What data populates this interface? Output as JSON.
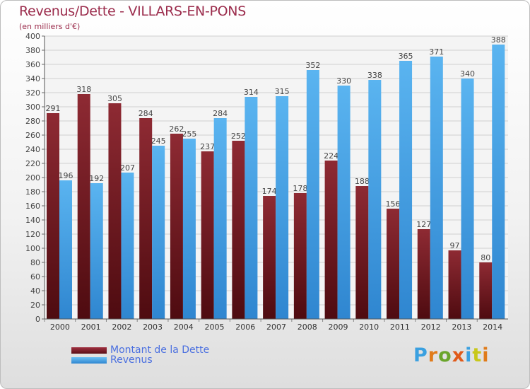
{
  "chart_data": {
    "type": "bar",
    "title": "Revenus/Dette - VILLARS-EN-PONS",
    "subtitle": "(en milliers d'€)",
    "categories": [
      "2000",
      "2001",
      "2002",
      "2003",
      "2004",
      "2005",
      "2006",
      "2007",
      "2008",
      "2009",
      "2010",
      "2011",
      "2012",
      "2013",
      "2014"
    ],
    "series": [
      {
        "name": "Montant de la Dette",
        "color": "#7a1f26",
        "values": [
          291,
          318,
          305,
          284,
          262,
          237,
          252,
          174,
          178,
          224,
          188,
          156,
          127,
          97,
          80
        ]
      },
      {
        "name": "Revenus",
        "color": "#4aa3e8",
        "values": [
          196,
          192,
          207,
          245,
          255,
          284,
          314,
          315,
          352,
          330,
          338,
          365,
          371,
          340,
          388
        ]
      }
    ],
    "ylim": [
      0,
      400
    ],
    "ytick_step": 20,
    "grid": true,
    "legend_position": "bottom-left"
  },
  "logo": {
    "text": "Proxiti"
  }
}
